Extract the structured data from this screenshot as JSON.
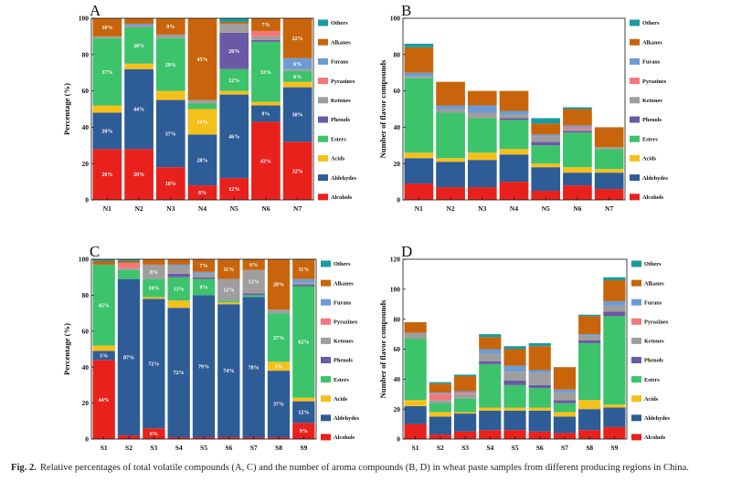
{
  "chart_data": [
    {
      "panel": "A",
      "type": "bar",
      "stacked": true,
      "ylabel": "Percentage (%)",
      "ylim": [
        0,
        100
      ],
      "yticks": [
        0,
        20,
        40,
        60,
        80,
        100
      ],
      "legend_position": "right",
      "categories": [
        "N1",
        "N2",
        "N3",
        "N4",
        "N5",
        "N6",
        "N7"
      ],
      "series": [
        {
          "name": "Alcohols",
          "color": "#e8211d",
          "values": [
            28,
            28,
            18,
            8,
            12,
            43,
            32
          ],
          "labels": [
            "28%",
            "28%",
            "18%",
            "8%",
            "12%",
            "43%",
            "32%"
          ]
        },
        {
          "name": "Aldehydes",
          "color": "#2e5c97",
          "values": [
            20,
            44,
            37,
            28,
            46,
            9,
            30
          ],
          "labels": [
            "20%",
            "44%",
            "37%",
            "28%",
            "46%",
            "9%",
            "30%"
          ]
        },
        {
          "name": "Acids",
          "color": "#f6c01b",
          "values": [
            4,
            3,
            5,
            14,
            2,
            2,
            3
          ],
          "labels": [
            null,
            null,
            null,
            "14%",
            null,
            null,
            null
          ]
        },
        {
          "name": "Esters",
          "color": "#3dc36b",
          "values": [
            37,
            20,
            29,
            3,
            12,
            33,
            6
          ],
          "labels": [
            "37%",
            "20%",
            "29%",
            null,
            "12%",
            "33%",
            "6%"
          ]
        },
        {
          "name": "Phenols",
          "color": "#6a5aa6",
          "values": [
            0,
            0,
            0,
            0,
            20,
            1,
            0
          ],
          "labels": [
            null,
            null,
            null,
            null,
            "20%",
            null,
            null
          ]
        },
        {
          "name": "Ketones",
          "color": "#9e9e9e",
          "values": [
            1,
            1,
            2,
            2,
            5,
            2,
            1
          ]
        },
        {
          "name": "Pyrazines",
          "color": "#f4777a",
          "values": [
            0,
            0,
            0,
            0,
            0,
            3,
            0
          ]
        },
        {
          "name": "Furans",
          "color": "#6d9cd4",
          "values": [
            0,
            1,
            0,
            0,
            0,
            0,
            6
          ],
          "labels": [
            null,
            null,
            null,
            null,
            null,
            null,
            "6%"
          ]
        },
        {
          "name": "Alkanes",
          "color": "#c8650c",
          "values": [
            10,
            3,
            9,
            45,
            1,
            7,
            22
          ],
          "labels": [
            "10%",
            null,
            "9%",
            "45%",
            null,
            "7%",
            "22%"
          ]
        },
        {
          "name": "Others",
          "color": "#1b9b9e",
          "values": [
            0,
            0,
            0,
            0,
            2,
            0,
            0
          ]
        }
      ]
    },
    {
      "panel": "B",
      "type": "bar",
      "stacked": true,
      "ylabel": "Number of flavor compounds",
      "ylim": [
        0,
        100
      ],
      "yticks": [
        0,
        20,
        40,
        60,
        80,
        100
      ],
      "legend_position": "right",
      "categories": [
        "N1",
        "N2",
        "N3",
        "N4",
        "N5",
        "N6",
        "N7"
      ],
      "series": [
        {
          "name": "Alcohols",
          "color": "#e8211d",
          "values": [
            9,
            7,
            7,
            10,
            5,
            8,
            6
          ]
        },
        {
          "name": "Aldehydes",
          "color": "#2e5c97",
          "values": [
            14,
            14,
            15,
            15,
            13,
            7,
            9
          ]
        },
        {
          "name": "Acids",
          "color": "#f6c01b",
          "values": [
            3,
            2,
            4,
            3,
            2,
            3,
            2
          ]
        },
        {
          "name": "Esters",
          "color": "#3dc36b",
          "values": [
            41,
            25,
            19,
            16,
            10,
            19,
            11
          ]
        },
        {
          "name": "Phenols",
          "color": "#6a5aa6",
          "values": [
            0,
            0,
            0,
            1,
            2,
            1,
            0
          ]
        },
        {
          "name": "Ketones",
          "color": "#9e9e9e",
          "values": [
            1,
            2,
            3,
            2,
            3,
            1,
            1
          ]
        },
        {
          "name": "Pyrazines",
          "color": "#f4777a",
          "values": [
            0,
            0,
            0,
            0,
            0,
            1,
            0
          ]
        },
        {
          "name": "Furans",
          "color": "#6d9cd4",
          "values": [
            2,
            2,
            4,
            2,
            1,
            1,
            0
          ]
        },
        {
          "name": "Alkanes",
          "color": "#c8650c",
          "values": [
            14,
            13,
            8,
            11,
            6,
            9,
            11
          ]
        },
        {
          "name": "Others",
          "color": "#1b9b9e",
          "values": [
            2,
            0,
            0,
            0,
            3,
            1,
            0
          ]
        }
      ]
    },
    {
      "panel": "C",
      "type": "bar",
      "stacked": true,
      "ylabel": "Percentage (%)",
      "ylim": [
        0,
        100
      ],
      "yticks": [
        0,
        20,
        40,
        60,
        80,
        100
      ],
      "legend_position": "right",
      "categories": [
        "S1",
        "S2",
        "S3",
        "S4",
        "S5",
        "S6",
        "S7",
        "S8",
        "S9"
      ],
      "series": [
        {
          "name": "Alcohols",
          "color": "#e8211d",
          "values": [
            44,
            2,
            6,
            1,
            1,
            1,
            1,
            1,
            9
          ],
          "labels": [
            "44%",
            null,
            "6%",
            null,
            null,
            null,
            null,
            null,
            "9%"
          ]
        },
        {
          "name": "Aldehydes",
          "color": "#2e5c97",
          "values": [
            5,
            87,
            72,
            72,
            79,
            74,
            78,
            37,
            12
          ],
          "labels": [
            "5%",
            "87%",
            "72%",
            "72%",
            "79%",
            "74%",
            "78%",
            "37%",
            "12%"
          ]
        },
        {
          "name": "Acids",
          "color": "#f6c01b",
          "values": [
            3,
            0,
            1,
            4,
            0,
            1,
            0,
            5,
            2
          ],
          "labels": [
            null,
            null,
            null,
            null,
            null,
            null,
            null,
            "5%",
            null
          ]
        },
        {
          "name": "Esters",
          "color": "#3dc36b",
          "values": [
            45,
            5,
            10,
            13,
            9,
            1,
            1,
            27,
            62
          ],
          "labels": [
            "45%",
            null,
            "10%",
            "13%",
            "9%",
            null,
            null,
            "27%",
            "62%"
          ]
        },
        {
          "name": "Phenols",
          "color": "#6a5aa6",
          "values": [
            0,
            0,
            0,
            2,
            1,
            0,
            1,
            0,
            1
          ]
        },
        {
          "name": "Ketones",
          "color": "#9e9e9e",
          "values": [
            0,
            1,
            8,
            4,
            2,
            12,
            13,
            2,
            1
          ],
          "labels": [
            null,
            null,
            "8%",
            null,
            null,
            "12%",
            "13%",
            null,
            null
          ]
        },
        {
          "name": "Pyrazines",
          "color": "#f4777a",
          "values": [
            0,
            3,
            0,
            0,
            0,
            0,
            0,
            0,
            0
          ]
        },
        {
          "name": "Furans",
          "color": "#6d9cd4",
          "values": [
            0,
            0,
            0,
            1,
            1,
            0,
            0,
            0,
            2
          ]
        },
        {
          "name": "Alkanes",
          "color": "#c8650c",
          "values": [
            2,
            1,
            3,
            3,
            7,
            11,
            6,
            28,
            11
          ],
          "labels": [
            null,
            null,
            null,
            null,
            "7%",
            "11%",
            "6%",
            "28%",
            "11%"
          ]
        },
        {
          "name": "Others",
          "color": "#1b9b9e",
          "values": [
            1,
            1,
            0,
            0,
            0,
            0,
            0,
            0,
            0
          ]
        }
      ]
    },
    {
      "panel": "D",
      "type": "bar",
      "stacked": true,
      "ylabel": "Number of flavor compounds",
      "ylim": [
        0,
        120
      ],
      "yticks": [
        0,
        20,
        40,
        60,
        80,
        100,
        120
      ],
      "legend_position": "right",
      "categories": [
        "S1",
        "S2",
        "S3",
        "S4",
        "S5",
        "S6",
        "S7",
        "S8",
        "S9"
      ],
      "series": [
        {
          "name": "Alcohols",
          "color": "#e8211d",
          "values": [
            10,
            3,
            5,
            6,
            6,
            5,
            4,
            6,
            8
          ]
        },
        {
          "name": "Aldehydes",
          "color": "#2e5c97",
          "values": [
            12,
            12,
            12,
            13,
            13,
            14,
            11,
            14,
            13
          ]
        },
        {
          "name": "Acids",
          "color": "#f6c01b",
          "values": [
            4,
            3,
            1,
            2,
            2,
            2,
            3,
            6,
            2
          ]
        },
        {
          "name": "Esters",
          "color": "#3dc36b",
          "values": [
            41,
            6,
            9,
            29,
            15,
            13,
            6,
            38,
            59
          ]
        },
        {
          "name": "Phenols",
          "color": "#6a5aa6",
          "values": [
            0,
            0,
            0,
            2,
            3,
            2,
            2,
            2,
            3
          ]
        },
        {
          "name": "Ketones",
          "color": "#9e9e9e",
          "values": [
            4,
            2,
            3,
            5,
            6,
            8,
            5,
            3,
            4
          ]
        },
        {
          "name": "Pyrazines",
          "color": "#f4777a",
          "values": [
            0,
            4,
            1,
            0,
            0,
            0,
            0,
            0,
            0
          ]
        },
        {
          "name": "Furans",
          "color": "#6d9cd4",
          "values": [
            0,
            1,
            1,
            3,
            4,
            2,
            2,
            1,
            3
          ]
        },
        {
          "name": "Alkanes",
          "color": "#c8650c",
          "values": [
            7,
            6,
            10,
            8,
            11,
            16,
            15,
            12,
            14
          ]
        },
        {
          "name": "Others",
          "color": "#1b9b9e",
          "values": [
            0,
            1,
            1,
            2,
            2,
            2,
            0,
            1,
            2
          ]
        }
      ]
    }
  ],
  "caption": {
    "label": "Fig. 2.",
    "text": "Relative percentages of total volatile compounds (A, C) and the number of aroma compounds (B, D) in wheat paste samples from different producing regions in China."
  }
}
